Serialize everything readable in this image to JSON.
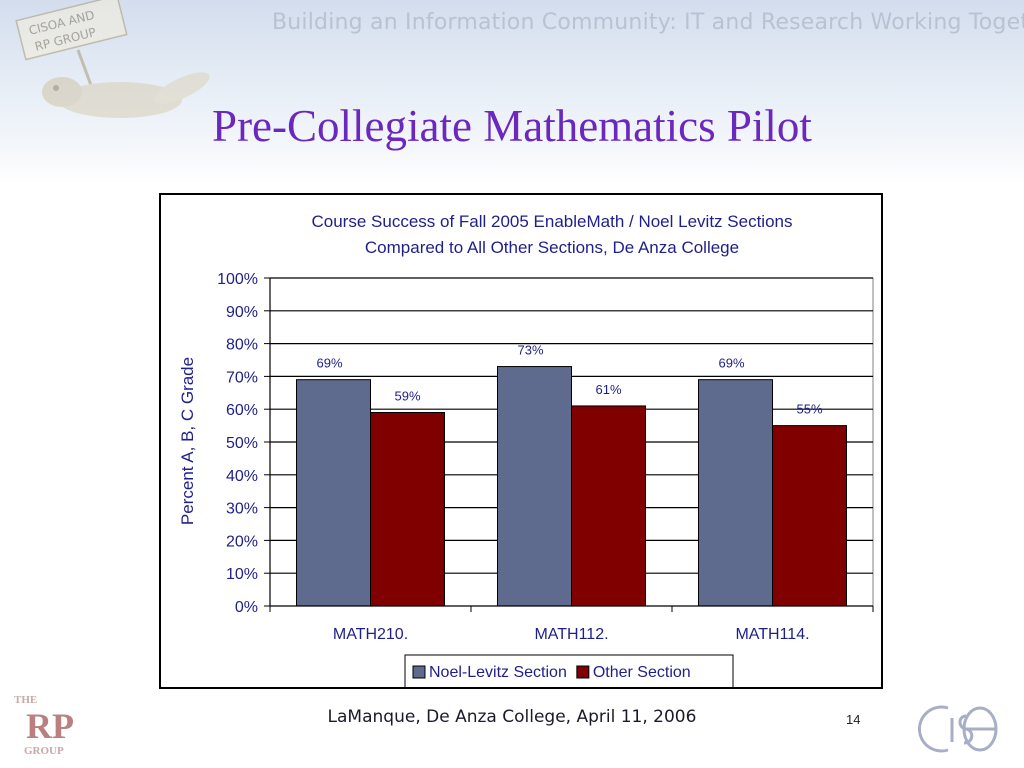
{
  "header": {
    "banner_text": "Building an Information Community:  IT and Research Working Together",
    "sign_line1": "CISOA AND",
    "sign_line2": "RP GROUP"
  },
  "slide": {
    "title": "Pre-Collegiate Mathematics Pilot",
    "footer": "LaManque, De Anza College, April 11, 2006",
    "number": "14"
  },
  "logos": {
    "rp_top": "THE",
    "rp_main": "RP",
    "rp_bottom": "GROUP"
  },
  "colors": {
    "title": "#6a28be",
    "chart_text": "#1f1f8a",
    "series_a": "#5e6a8e",
    "series_b": "#800000"
  },
  "chart_data": {
    "type": "bar",
    "title_lines": [
      "Course Success of Fall 2005 EnableMath / Noel Levitz Sections",
      "Compared to All Other Sections, De Anza College"
    ],
    "ylabel": "Percent A, B, C Grade",
    "xlabel": "",
    "categories": [
      "MATH210.",
      "MATH112.",
      "MATH114."
    ],
    "series": [
      {
        "name": "Noel-Levitz Section",
        "values": [
          69,
          73,
          69
        ],
        "labels": [
          "69%",
          "73%",
          "69%"
        ],
        "color": "#5e6a8e"
      },
      {
        "name": "Other Section",
        "values": [
          59,
          61,
          55
        ],
        "labels": [
          "59%",
          "61%",
          "55%"
        ],
        "color": "#800000"
      }
    ],
    "ylim": [
      0,
      100
    ],
    "yticks": [
      0,
      10,
      20,
      30,
      40,
      50,
      60,
      70,
      80,
      90,
      100
    ],
    "ytick_labels": [
      "0%",
      "10%",
      "20%",
      "30%",
      "40%",
      "50%",
      "60%",
      "70%",
      "80%",
      "90%",
      "100%"
    ],
    "grid": true,
    "legend_position": "bottom"
  }
}
